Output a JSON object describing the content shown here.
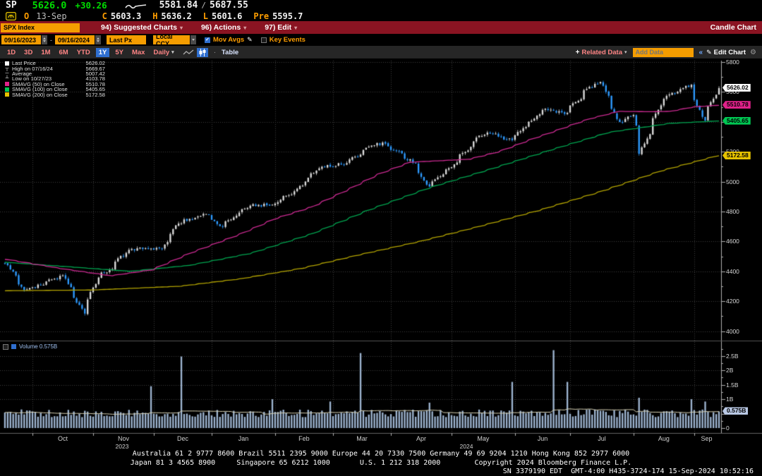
{
  "icons": {
    "dropdown": "▾",
    "plus": "+",
    "pencil": "✎",
    "gear": "⚙",
    "chevrons": "«",
    "check": "✓",
    "dot": "·",
    "high_marker": "┬",
    "avg_marker": "─",
    "low_marker": "┴"
  },
  "header": {
    "ticker": "SP",
    "last_price": "5626.0",
    "change": "+30.26",
    "range_low": "5581.84",
    "range_sep": "/",
    "range_high": "5687.55",
    "session_label": "O",
    "session_date": "13-Sep",
    "stats": [
      {
        "label": "C",
        "value": "5603.3"
      },
      {
        "label": "H",
        "value": "5636.2"
      },
      {
        "label": "L",
        "value": "5601.6"
      },
      {
        "label": "Pre",
        "value": "5595.7"
      }
    ]
  },
  "menubar": {
    "security": "SPX Index",
    "items": [
      "94) Suggested Charts",
      "96) Actions",
      "97) Edit"
    ],
    "right_label": "Candle Chart"
  },
  "controls": {
    "date_from": "09/16/2023",
    "date_sep": "-",
    "date_to": "09/16/2024",
    "price_field": "Last Px",
    "currency": "Local CCY",
    "mov_avgs_label": "Mov Avgs",
    "key_events_label": "Key Events",
    "periods": [
      "1D",
      "3D",
      "1M",
      "6M",
      "YTD",
      "1Y",
      "5Y",
      "Max"
    ],
    "active_period": "1Y",
    "frequency": "Daily",
    "table_label": "Table",
    "related_data_label": "Related Data",
    "add_data_placeholder": "Add Data",
    "edit_chart_label": "Edit Chart"
  },
  "legend": {
    "items": [
      {
        "marker": "square",
        "color": "#ffffff",
        "label": "Last Price",
        "value": "5626.02"
      },
      {
        "marker": "high",
        "color": "#ffffff",
        "label": "High on 07/16/24",
        "value": "5669.67"
      },
      {
        "marker": "avg",
        "color": "#ffffff",
        "label": "Average",
        "value": "5007.42"
      },
      {
        "marker": "low",
        "color": "#ffffff",
        "label": "Low on 10/27/23",
        "value": "4103.78"
      },
      {
        "marker": "square",
        "color": "#e0218a",
        "label": "SMAVG (50) on Close",
        "value": "5510.78"
      },
      {
        "marker": "square",
        "color": "#00c853",
        "label": "SMAVG (100) on Close",
        "value": "5405.65"
      },
      {
        "marker": "square",
        "color": "#e6c200",
        "label": "SMAVG (200) on Close",
        "value": "5172.58"
      }
    ]
  },
  "volume_pane": {
    "legend_label": "Volume 0.575B"
  },
  "axis": {
    "price_ticks": [
      "5800",
      "5600",
      "5400",
      "5200",
      "5000",
      "4800",
      "4600",
      "4400",
      "4200",
      "4000"
    ],
    "volume_ticks": [
      {
        "v": 2.5,
        "label": "2.5B"
      },
      {
        "v": 2.0,
        "label": "2B"
      },
      {
        "v": 1.5,
        "label": "1.5B"
      },
      {
        "v": 1.0,
        "label": "1B"
      },
      {
        "v": 0.0,
        "label": "0"
      }
    ],
    "price_tags": [
      {
        "value": 5626.02,
        "label": "5626.02",
        "bg": "#ffffff",
        "fg": "#000000"
      },
      {
        "value": 5510.78,
        "label": "5510.78",
        "bg": "#e0218a",
        "fg": "#000000"
      },
      {
        "value": 5405.65,
        "label": "5405.65",
        "bg": "#00c853",
        "fg": "#000000"
      },
      {
        "value": 5172.58,
        "label": "5172.58",
        "bg": "#e6c200",
        "fg": "#000000"
      }
    ],
    "volume_tag": {
      "value": 0.575,
      "label": "0.575B",
      "bg": "#b9c8e4",
      "fg": "#000000"
    },
    "months": [
      "Oct",
      "Nov",
      "Dec",
      "Jan",
      "Feb",
      "Mar",
      "Apr",
      "May",
      "Jun",
      "Jul",
      "Aug",
      "Sep"
    ],
    "years": [
      "2023",
      "2024"
    ]
  },
  "footer": {
    "line1": "Australia 61 2 9777 8600 Brazil 5511 2395 9000 Europe 44 20 7330 7500 Germany 49 69 9204 1210 Hong Kong 852 2977 6000",
    "line2": "Japan 81 3 4565 8900     Singapore 65 6212 1000       U.S. 1 212 318 2000        Copyright 2024 Bloomberg Finance L.P.",
    "line3": "SN 3379190 EDT  GMT-4:00 H435-3724-174 15-Sep-2024 10:52:16"
  },
  "chart_data": {
    "type": "candlestick+volume",
    "title": "SPX Index 1Y Daily Candle Chart",
    "date_range": [
      "2023-09-16",
      "2024-09-16"
    ],
    "price_axis_range": [
      4000,
      5800
    ],
    "volume_axis_range": [
      0,
      2.8
    ],
    "grid": true,
    "last_close": 5626.02,
    "high": {
      "date": "2024-07-16",
      "value": 5669.67
    },
    "low": {
      "date": "2023-10-27",
      "value": 4103.78
    },
    "average": 5007.42,
    "noise_seed": 11,
    "price_keypoints": [
      [
        "2023-09-18",
        4454
      ],
      [
        "2023-09-27",
        4274
      ],
      [
        "2023-10-06",
        4309
      ],
      [
        "2023-10-12",
        4350
      ],
      [
        "2023-10-17",
        4373
      ],
      [
        "2023-10-27",
        4117
      ],
      [
        "2023-11-03",
        4358
      ],
      [
        "2023-11-10",
        4415
      ],
      [
        "2023-11-15",
        4503
      ],
      [
        "2023-11-24",
        4559
      ],
      [
        "2023-12-06",
        4549
      ],
      [
        "2023-12-14",
        4720
      ],
      [
        "2023-12-28",
        4783
      ],
      [
        "2024-01-05",
        4697
      ],
      [
        "2024-01-19",
        4839
      ],
      [
        "2024-01-31",
        4845
      ],
      [
        "2024-02-13",
        4953
      ],
      [
        "2024-02-23",
        5089
      ],
      [
        "2024-03-08",
        5124
      ],
      [
        "2024-03-21",
        5241
      ],
      [
        "2024-03-28",
        5254
      ],
      [
        "2024-04-12",
        5123
      ],
      [
        "2024-04-19",
        4967
      ],
      [
        "2024-05-03",
        5128
      ],
      [
        "2024-05-15",
        5308
      ],
      [
        "2024-05-21",
        5321
      ],
      [
        "2024-05-31",
        5278
      ],
      [
        "2024-06-12",
        5421
      ],
      [
        "2024-06-18",
        5487
      ],
      [
        "2024-06-28",
        5460
      ],
      [
        "2024-07-10",
        5634
      ],
      [
        "2024-07-16",
        5667
      ],
      [
        "2024-07-25",
        5399
      ],
      [
        "2024-08-01",
        5446
      ],
      [
        "2024-08-05",
        5186
      ],
      [
        "2024-08-16",
        5554
      ],
      [
        "2024-08-27",
        5626
      ],
      [
        "2024-08-30",
        5648
      ],
      [
        "2024-09-06",
        5408
      ],
      [
        "2024-09-11",
        5554
      ],
      [
        "2024-09-13",
        5626.02
      ]
    ],
    "sma50_keypoints": [
      [
        "2023-09-18",
        4480
      ],
      [
        "2023-10-15",
        4420
      ],
      [
        "2023-11-10",
        4370
      ],
      [
        "2023-12-01",
        4410
      ],
      [
        "2023-12-20",
        4520
      ],
      [
        "2024-01-15",
        4650
      ],
      [
        "2024-02-01",
        4750
      ],
      [
        "2024-02-20",
        4830
      ],
      [
        "2024-03-10",
        4950
      ],
      [
        "2024-03-25",
        5050
      ],
      [
        "2024-04-10",
        5130
      ],
      [
        "2024-04-25",
        5140
      ],
      [
        "2024-05-10",
        5150
      ],
      [
        "2024-05-25",
        5200
      ],
      [
        "2024-06-10",
        5280
      ],
      [
        "2024-06-25",
        5350
      ],
      [
        "2024-07-10",
        5420
      ],
      [
        "2024-07-25",
        5470
      ],
      [
        "2024-08-10",
        5468
      ],
      [
        "2024-08-20",
        5470
      ],
      [
        "2024-09-01",
        5500
      ],
      [
        "2024-09-13",
        5510.78
      ]
    ],
    "sma100_keypoints": [
      [
        "2023-09-18",
        4460
      ],
      [
        "2023-10-20",
        4430
      ],
      [
        "2023-11-20",
        4400
      ],
      [
        "2023-12-20",
        4440
      ],
      [
        "2024-01-20",
        4520
      ],
      [
        "2024-02-20",
        4650
      ],
      [
        "2024-03-20",
        4810
      ],
      [
        "2024-04-20",
        4960
      ],
      [
        "2024-05-20",
        5080
      ],
      [
        "2024-06-20",
        5210
      ],
      [
        "2024-07-20",
        5330
      ],
      [
        "2024-08-20",
        5390
      ],
      [
        "2024-09-13",
        5405.65
      ]
    ],
    "sma200_keypoints": [
      [
        "2023-09-18",
        4270
      ],
      [
        "2023-11-01",
        4275
      ],
      [
        "2023-12-15",
        4300
      ],
      [
        "2024-01-15",
        4350
      ],
      [
        "2024-02-15",
        4420
      ],
      [
        "2024-03-15",
        4510
      ],
      [
        "2024-04-15",
        4600
      ],
      [
        "2024-05-15",
        4700
      ],
      [
        "2024-06-15",
        4810
      ],
      [
        "2024-07-15",
        4930
      ],
      [
        "2024-08-15",
        5070
      ],
      [
        "2024-09-13",
        5172.58
      ]
    ],
    "volume_baseline": [
      0.38,
      0.65
    ],
    "volume_spikes": [
      [
        "2023-11-30",
        1.45
      ],
      [
        "2023-12-15",
        2.48
      ],
      [
        "2024-01-31",
        1.0
      ],
      [
        "2024-02-29",
        0.92
      ],
      [
        "2024-03-15",
        2.6
      ],
      [
        "2024-04-19",
        0.88
      ],
      [
        "2024-05-31",
        1.6
      ],
      [
        "2024-06-21",
        2.7
      ],
      [
        "2024-06-28",
        1.6
      ],
      [
        "2024-08-05",
        1.05
      ],
      [
        "2024-08-30",
        1.0
      ],
      [
        "2024-09-06",
        0.92
      ]
    ],
    "last_volume": 0.575,
    "colors": {
      "up_candle": "#dcdcdc",
      "down_candle": "#2e9bff",
      "sma50": "#cc2a92",
      "sma100": "#00a550",
      "sma200": "#b3a400",
      "volume_bar": "#9db4d0",
      "volume_avg_line": "#d8d2b4",
      "grid": "#3c3c3c",
      "axis": "#b0b0b0"
    }
  }
}
